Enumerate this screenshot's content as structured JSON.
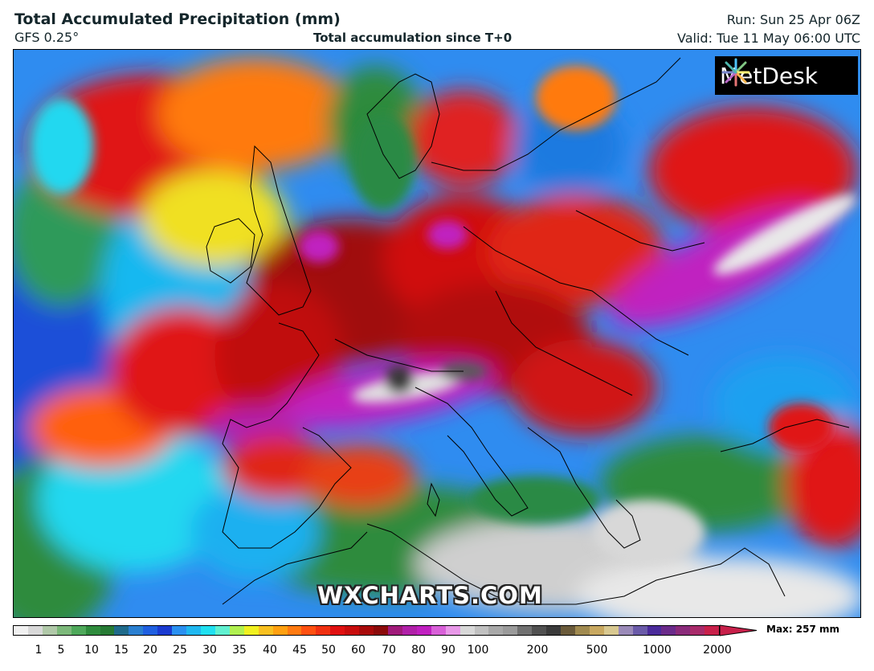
{
  "header": {
    "title": "Total Accumulated Precipitation (mm)",
    "model": "GFS 0.25°",
    "subtitle": "Total accumulation since T+0",
    "run": "Run: Sun 25 Apr 06Z",
    "valid": "Valid: Tue 11 May 06:00 UTC"
  },
  "logo": {
    "text": "MetDesk"
  },
  "watermark": "WXCHARTS.COM",
  "legend": {
    "max_label": "Max: 257 mm",
    "ticks": [
      "1",
      "5",
      "10",
      "15",
      "20",
      "25",
      "30",
      "35",
      "40",
      "45",
      "50",
      "60",
      "70",
      "80",
      "90",
      "100",
      "200",
      "500",
      "1000",
      "2000"
    ],
    "colors": {
      "trace": "#f0f0f0",
      "light": "#2e8b3c",
      "blue": "#1f5fe0",
      "cyan": "#20e0f0",
      "yellow": "#f0f020",
      "orange": "#ff7a10",
      "red": "#e01010",
      "dark_red": "#8b0a0a",
      "magenta": "#c020c0",
      "grey": "#9a9a9a",
      "dark": "#3a3a3a",
      "tan": "#c8a860",
      "indigo": "#4a2a9a",
      "crimson": "#c8204a"
    }
  }
}
